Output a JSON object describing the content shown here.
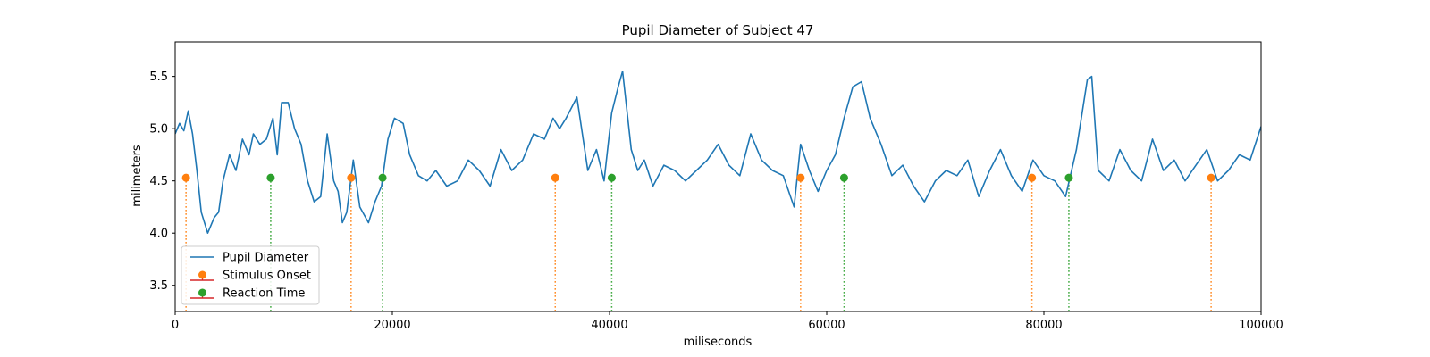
{
  "chart_data": {
    "type": "line",
    "title": "Pupil Diameter of Subject 47",
    "xlabel": "miliseconds",
    "ylabel": "milimeters",
    "xlim": [
      0,
      100000
    ],
    "ylim": [
      3.25,
      5.83
    ],
    "xticks": [
      0,
      20000,
      40000,
      60000,
      80000,
      100000
    ],
    "xtick_labels": [
      "0",
      "20000",
      "40000",
      "60000",
      "80000",
      "100000"
    ],
    "yticks": [
      3.5,
      4.0,
      4.5,
      5.0,
      5.5
    ],
    "ytick_labels": [
      "3.5",
      "4.0",
      "4.5",
      "5.0",
      "5.5"
    ],
    "grid": false,
    "legend_position": "lower-left",
    "series": [
      {
        "name": "Pupil Diameter",
        "kind": "line",
        "color": "#1f77b4",
        "x": [
          0,
          400,
          800,
          1200,
          1600,
          2000,
          2400,
          3000,
          3600,
          4000,
          4400,
          5000,
          5600,
          6200,
          6800,
          7200,
          7800,
          8400,
          9000,
          9400,
          9800,
          10400,
          11000,
          11600,
          12200,
          12800,
          13400,
          14000,
          14600,
          15000,
          15400,
          15800,
          16400,
          17000,
          17800,
          18400,
          19000,
          19600,
          20200,
          21000,
          21600,
          22400,
          23200,
          24000,
          25000,
          26000,
          27000,
          28000,
          29000,
          30000,
          31000,
          32000,
          33000,
          34000,
          34800,
          35400,
          36000,
          37000,
          38000,
          38800,
          39500,
          40200,
          40800,
          41200,
          42000,
          42600,
          43200,
          44000,
          45000,
          46000,
          47000,
          48000,
          49000,
          50000,
          51000,
          52000,
          53000,
          54000,
          55000,
          56000,
          57000,
          57600,
          58400,
          59200,
          60000,
          60800,
          61600,
          62400,
          63200,
          64000,
          65000,
          66000,
          67000,
          68000,
          69000,
          70000,
          71000,
          72000,
          73000,
          74000,
          75000,
          76000,
          77000,
          78000,
          79000,
          80000,
          81000,
          82000,
          83000,
          84000,
          84400,
          85000,
          86000,
          87000,
          88000,
          89000,
          90000,
          91000,
          92000,
          93000,
          94000,
          95000,
          96000,
          97000,
          98000,
          99000,
          100000
        ],
        "y": [
          4.95,
          5.05,
          4.98,
          5.17,
          4.95,
          4.6,
          4.2,
          4.0,
          4.15,
          4.2,
          4.5,
          4.75,
          4.6,
          4.9,
          4.75,
          4.95,
          4.85,
          4.9,
          5.1,
          4.75,
          5.25,
          5.25,
          5.0,
          4.85,
          4.5,
          4.3,
          4.35,
          4.95,
          4.5,
          4.4,
          4.1,
          4.2,
          4.7,
          4.25,
          4.1,
          4.3,
          4.45,
          4.9,
          5.1,
          5.05,
          4.75,
          4.55,
          4.5,
          4.6,
          4.45,
          4.5,
          4.7,
          4.6,
          4.45,
          4.8,
          4.6,
          4.7,
          4.95,
          4.9,
          5.1,
          5.0,
          5.1,
          5.3,
          4.6,
          4.8,
          4.5,
          5.15,
          5.4,
          5.55,
          4.8,
          4.6,
          4.7,
          4.45,
          4.65,
          4.6,
          4.5,
          4.6,
          4.7,
          4.85,
          4.65,
          4.55,
          4.95,
          4.7,
          4.6,
          4.55,
          4.25,
          4.85,
          4.6,
          4.4,
          4.6,
          4.75,
          5.1,
          5.4,
          5.45,
          5.1,
          4.85,
          4.55,
          4.65,
          4.45,
          4.3,
          4.5,
          4.6,
          4.55,
          4.7,
          4.35,
          4.6,
          4.8,
          4.55,
          4.4,
          4.7,
          4.55,
          4.5,
          4.35,
          4.8,
          5.47,
          5.5,
          4.6,
          4.5,
          4.8,
          4.6,
          4.5,
          4.9,
          4.6,
          4.7,
          4.5,
          4.65,
          4.8,
          4.5,
          4.6,
          4.75,
          4.7,
          5.02
        ]
      },
      {
        "name": "Stimulus Onset",
        "kind": "stem",
        "color": "#ff7f0e",
        "x": [
          1000,
          16200,
          35000,
          57600,
          78900,
          95400
        ],
        "y": [
          4.53,
          4.53,
          4.53,
          4.53,
          4.53,
          4.53
        ]
      },
      {
        "name": "Reaction Time",
        "kind": "stem",
        "color": "#2ca02c",
        "x": [
          8800,
          19100,
          40200,
          61600,
          82300
        ],
        "y": [
          4.53,
          4.53,
          4.53,
          4.53,
          4.53
        ]
      }
    ],
    "legend_stem_baseline_color": "#d62728"
  }
}
